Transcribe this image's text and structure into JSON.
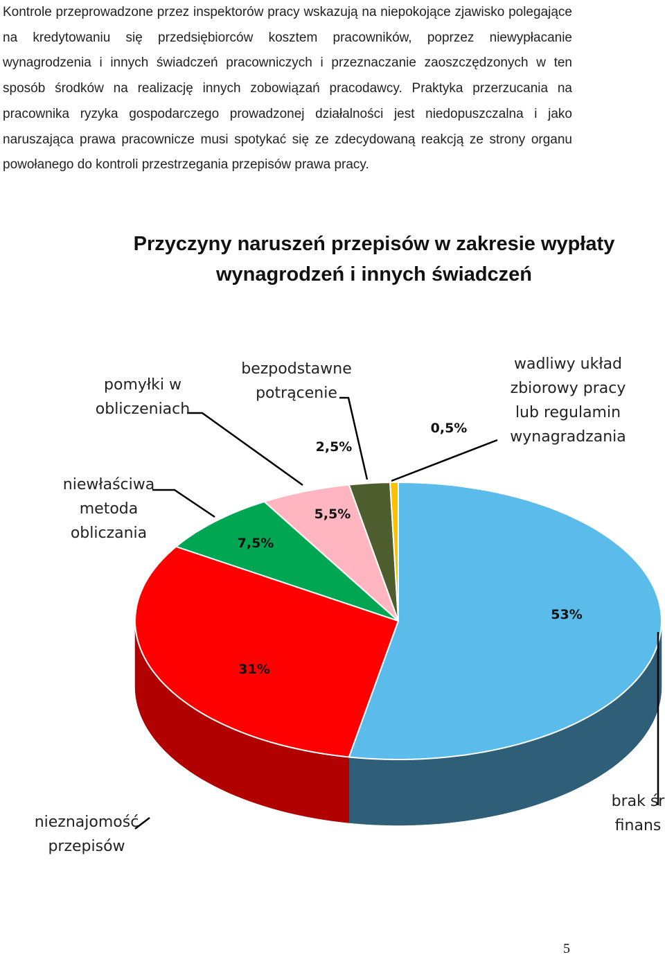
{
  "document": {
    "paragraph": "Kontrole przeprowadzone przez inspektorów pracy wskazują na niepokojące zjawisko polegające na kredytowaniu się przedsiębiorców kosztem pracowników, poprzez niewypłacanie wynagrodzenia i innych świadczeń pracowniczych i przeznaczanie zaoszczędzonych w ten sposób środków na realizację innych zobowiązań pracodawcy. Praktyka przerzucania na pracownika ryzyka gospodarczego prowadzonej działalności jest niedopuszczalna i jako naruszająca prawa pracownicze musi spotykać się ze zdecydowaną reakcją ze strony organu powołanego do kontroli przestrzegania przepisów prawa pracy.",
    "page_number": "5"
  },
  "chart_data": {
    "type": "pie",
    "title_lines": [
      "Przyczyny naruszeń przepisów w zakresie wypłaty",
      "wynagrodzeń i innych świadczeń"
    ],
    "slices": [
      {
        "label_lines": [
          "brak śr",
          "finans"
        ],
        "value": 53,
        "value_label": "53%",
        "color": "#5BBCEB",
        "side_color": "#2E5E78"
      },
      {
        "label_lines": [
          "nieznajomość",
          "przepisów"
        ],
        "value": 31,
        "value_label": "31%",
        "color": "#FF0000",
        "side_color": "#B00000"
      },
      {
        "label_lines": [
          "niewłaściwa",
          "metoda",
          "obliczania"
        ],
        "value": 7.5,
        "value_label": "7,5%",
        "color": "#00A651",
        "side_color": "#006B35"
      },
      {
        "label_lines": [
          "pomyłki w",
          "obliczeniach"
        ],
        "value": 5.5,
        "value_label": "5,5%",
        "color": "#FFB6C1",
        "side_color": "#C08590"
      },
      {
        "label_lines": [
          "bezpodstawne",
          "potrącenie"
        ],
        "value": 2.5,
        "value_label": "2,5%",
        "color": "#4E5D2E",
        "side_color": "#333D1E"
      },
      {
        "label_lines": [
          "wadliwy układ",
          "zbiorowy pracy",
          "lub regulamin",
          "wynagradzania"
        ],
        "value": 0.5,
        "value_label": "0,5%",
        "color": "#FFC000",
        "side_color": "#B08600"
      }
    ],
    "legend": "none"
  }
}
